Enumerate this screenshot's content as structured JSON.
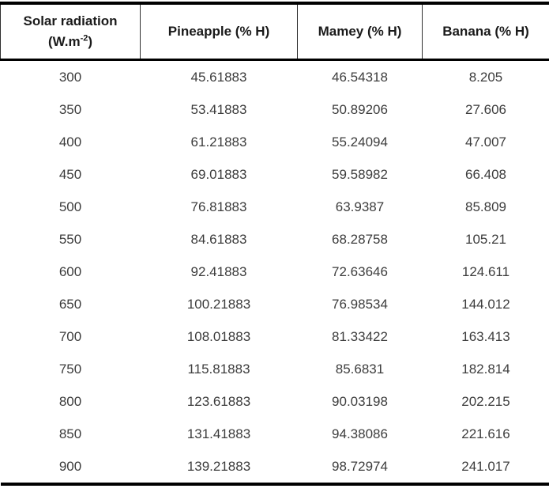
{
  "table": {
    "header": {
      "col1_line1": "Solar radiation",
      "col1_unit_base": "(W.m",
      "col1_unit_sup": "-2",
      "col1_unit_close": ")",
      "col2": "Pineapple (% H)",
      "col3": "Mamey (% H)",
      "col4": "Banana (% H)"
    },
    "rows": [
      [
        "300",
        "45.61883",
        "46.54318",
        "8.205"
      ],
      [
        "350",
        "53.41883",
        "50.89206",
        "27.606"
      ],
      [
        "400",
        "61.21883",
        "55.24094",
        "47.007"
      ],
      [
        "450",
        "69.01883",
        "59.58982",
        "66.408"
      ],
      [
        "500",
        "76.81883",
        "63.9387",
        "85.809"
      ],
      [
        "550",
        "84.61883",
        "68.28758",
        "105.21"
      ],
      [
        "600",
        "92.41883",
        "72.63646",
        "124.611"
      ],
      [
        "650",
        "100.21883",
        "76.98534",
        "144.012"
      ],
      [
        "700",
        "108.01883",
        "81.33422",
        "163.413"
      ],
      [
        "750",
        "115.81883",
        "85.6831",
        "182.814"
      ],
      [
        "800",
        "123.61883",
        "90.03198",
        "202.215"
      ],
      [
        "850",
        "131.41883",
        "94.38086",
        "221.616"
      ],
      [
        "900",
        "139.21883",
        "98.72974",
        "241.017"
      ]
    ]
  },
  "colors": {
    "border_thick": "#000000",
    "border_thin": "#2f2f2f",
    "header_text": "#1a1a1a",
    "body_text": "#3d3d3d",
    "background": "#ffffff"
  },
  "chart_data": {
    "type": "table",
    "title": "",
    "columns": [
      "Solar radiation (W.m-2)",
      "Pineapple (% H)",
      "Mamey (% H)",
      "Banana (% H)"
    ],
    "x": [
      300,
      350,
      400,
      450,
      500,
      550,
      600,
      650,
      700,
      750,
      800,
      850,
      900
    ],
    "xlabel": "Solar radiation (W.m-2)",
    "ylabel": "% H",
    "series": [
      {
        "name": "Pineapple (% H)",
        "values": [
          45.61883,
          53.41883,
          61.21883,
          69.01883,
          76.81883,
          84.61883,
          92.41883,
          100.21883,
          108.01883,
          115.81883,
          123.61883,
          131.41883,
          139.21883
        ]
      },
      {
        "name": "Mamey (% H)",
        "values": [
          46.54318,
          50.89206,
          55.24094,
          59.58982,
          63.9387,
          68.28758,
          72.63646,
          76.98534,
          81.33422,
          85.6831,
          90.03198,
          94.38086,
          98.72974
        ]
      },
      {
        "name": "Banana (% H)",
        "values": [
          8.205,
          27.606,
          47.007,
          66.408,
          85.809,
          105.21,
          124.611,
          144.012,
          163.413,
          182.814,
          202.215,
          221.616,
          241.017
        ]
      }
    ]
  }
}
